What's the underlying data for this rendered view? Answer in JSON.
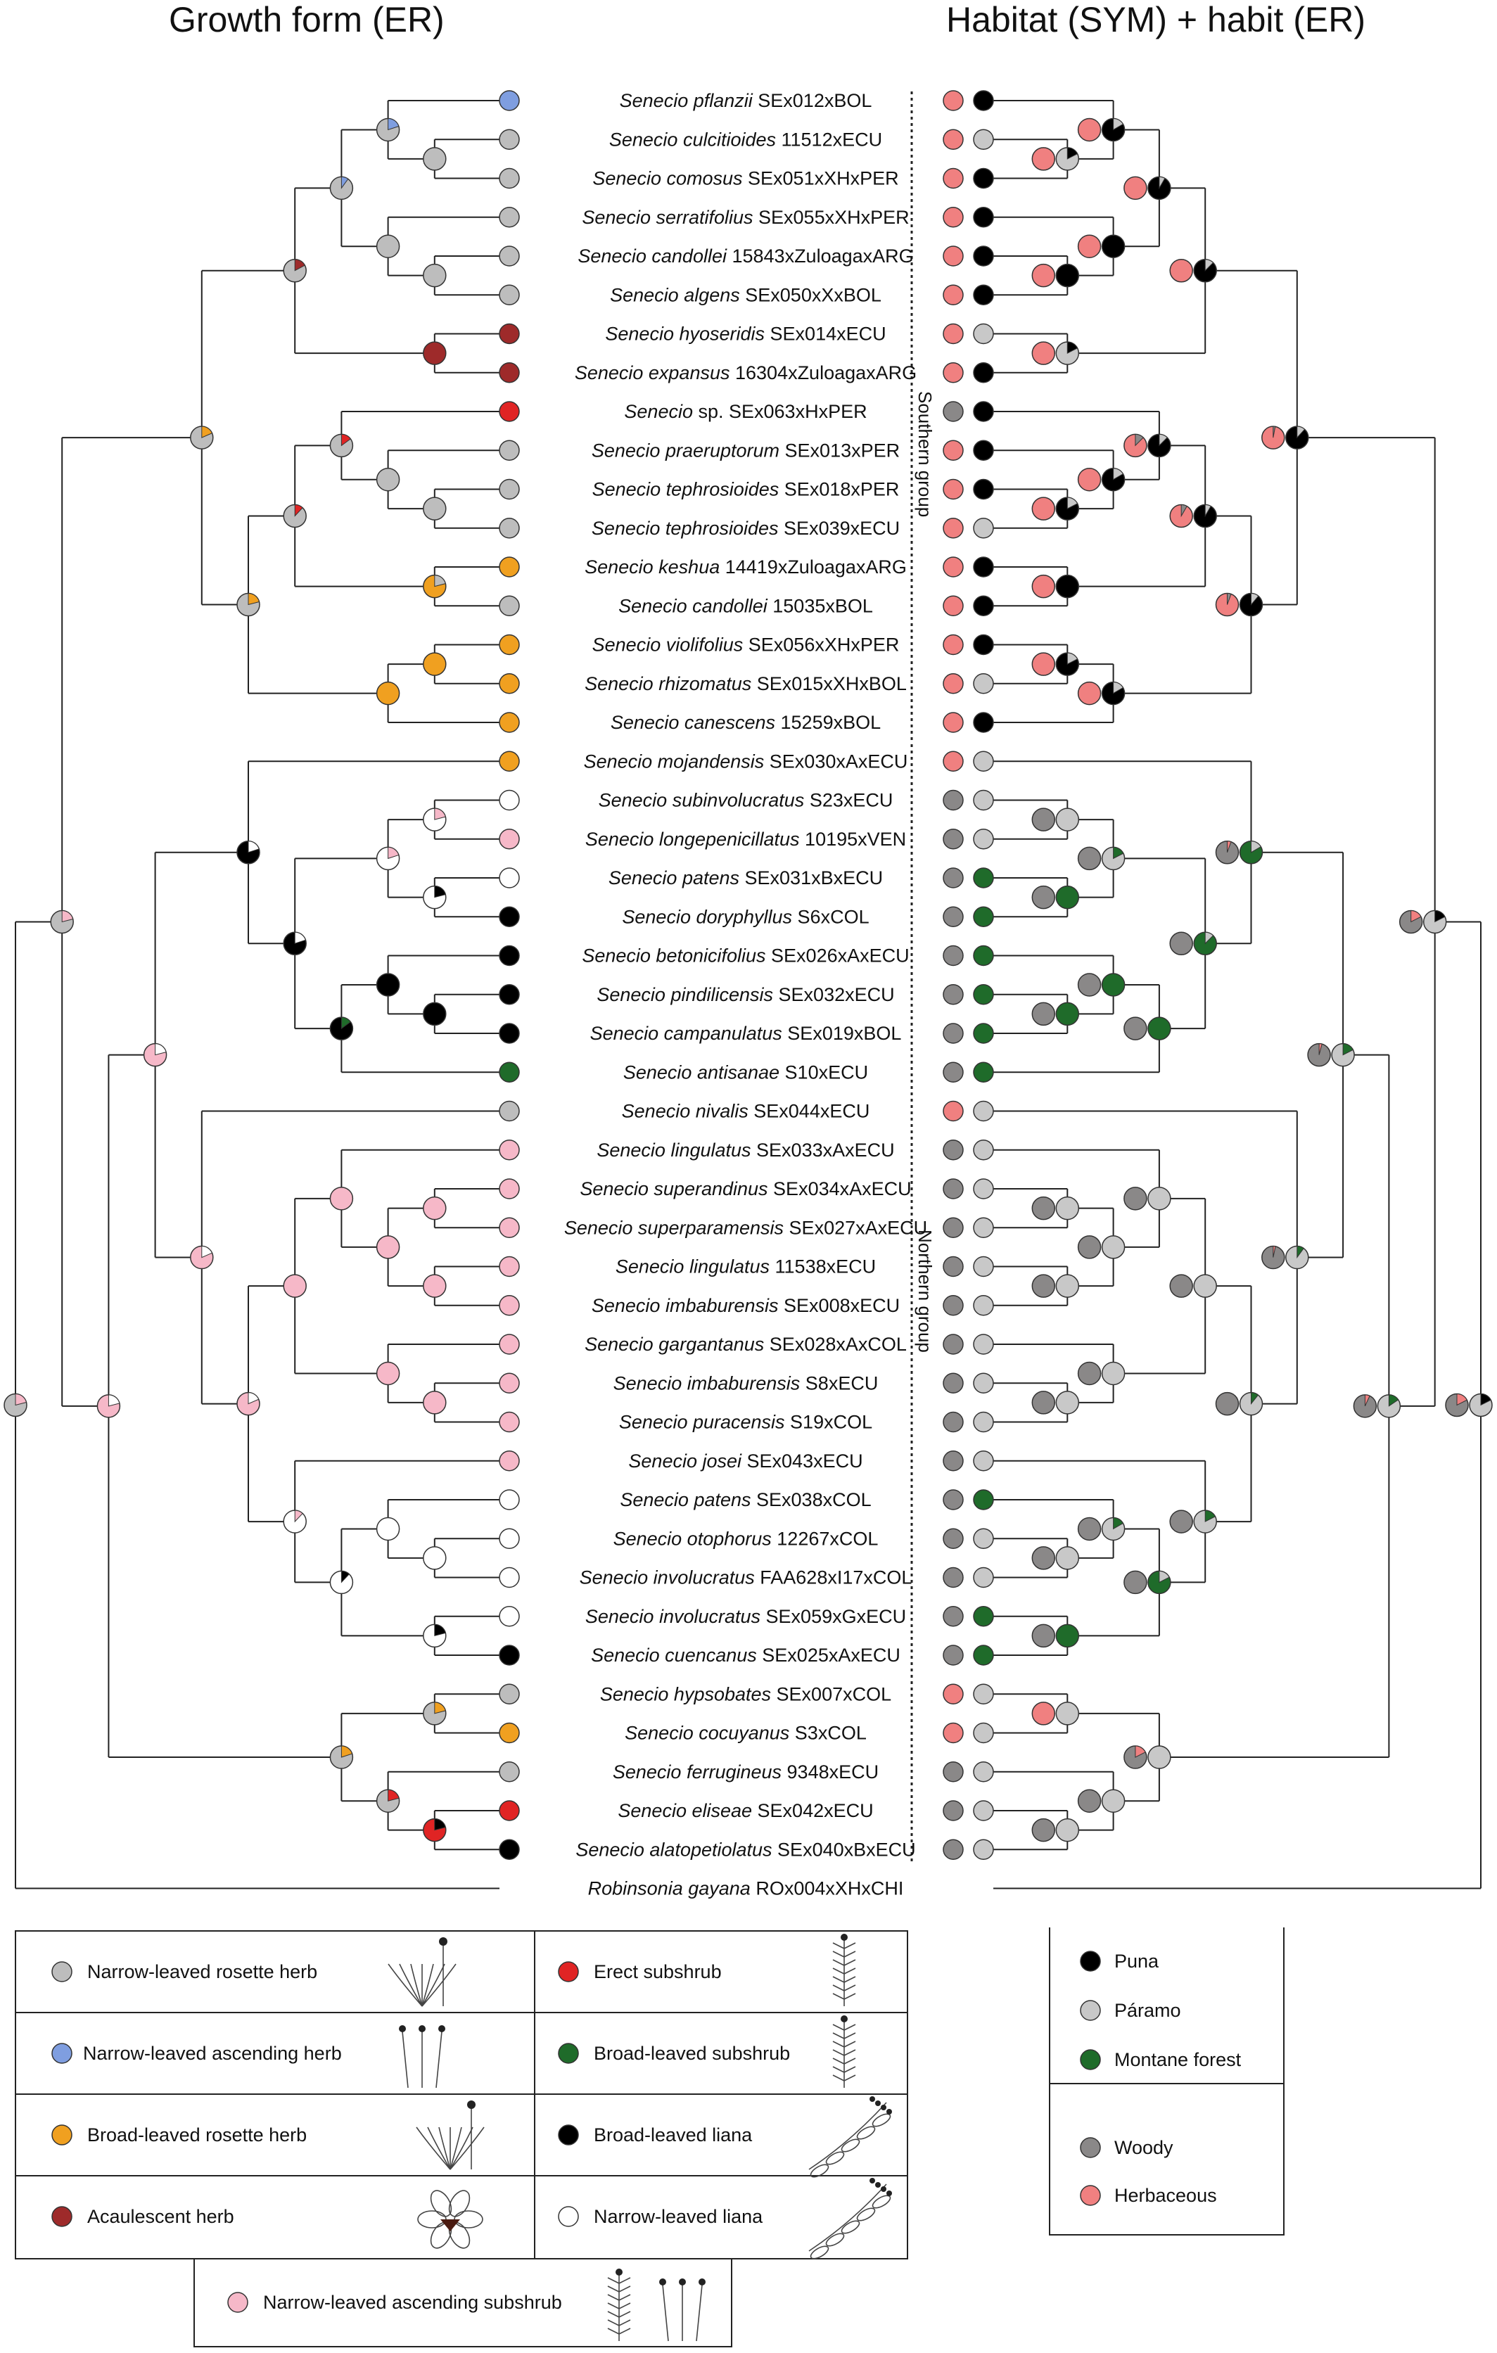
{
  "titles": {
    "left": "Growth form (ER)",
    "right": "Habitat (SYM) + habit (ER)"
  },
  "groups": {
    "southern": "Southern group",
    "northern": "Northern group"
  },
  "colors": {
    "narrow_rosette": "#bdbdbd",
    "narrow_ascending_herb": "#7f9ee0",
    "broad_rosette": "#f0a020",
    "acaulescent": "#9e2a2a",
    "erect_subshrub": "#e02424",
    "broad_subshrub": "#1f6b2a",
    "broad_liana": "#000000",
    "narrow_liana": "#ffffff",
    "narrow_ascending_subshrub": "#f6b8c8",
    "puna": "#000000",
    "paramo": "#c8c8c8",
    "montane": "#1f6b2a",
    "woody": "#8a8888",
    "herbaceous": "#f08080"
  },
  "taxa": [
    {
      "genus": "Senecio",
      "epithet": "pflanzii",
      "code": "SEx012xBOL",
      "growth": "narrow_ascending_herb",
      "habit": "herbaceous",
      "habitat": "puna"
    },
    {
      "genus": "Senecio",
      "epithet": "culcitioides",
      "code": "11512xECU",
      "growth": "narrow_rosette",
      "habit": "herbaceous",
      "habitat": "paramo"
    },
    {
      "genus": "Senecio",
      "epithet": "comosus",
      "code": "SEx051xXHxPER",
      "growth": "narrow_rosette",
      "habit": "herbaceous",
      "habitat": "puna"
    },
    {
      "genus": "Senecio",
      "epithet": "serratifolius",
      "code": "SEx055xXHxPER",
      "growth": "narrow_rosette",
      "habit": "herbaceous",
      "habitat": "puna"
    },
    {
      "genus": "Senecio",
      "epithet": "candollei",
      "code": "15843xZuloagaxARG",
      "growth": "narrow_rosette",
      "habit": "herbaceous",
      "habitat": "puna"
    },
    {
      "genus": "Senecio",
      "epithet": "algens",
      "code": "SEx050xXxBOL",
      "growth": "narrow_rosette",
      "habit": "herbaceous",
      "habitat": "puna"
    },
    {
      "genus": "Senecio",
      "epithet": "hyoseridis",
      "code": "SEx014xECU",
      "growth": "acaulescent",
      "habit": "herbaceous",
      "habitat": "paramo"
    },
    {
      "genus": "Senecio",
      "epithet": "expansus",
      "code": "16304xZuloagaxARG",
      "growth": "acaulescent",
      "habit": "herbaceous",
      "habitat": "puna"
    },
    {
      "genus": "Senecio",
      "epithet": "sp.",
      "code": "SEx063xHxPER",
      "growth": "erect_subshrub",
      "habit": "woody",
      "habitat": "puna",
      "plain_epithet": true
    },
    {
      "genus": "Senecio",
      "epithet": "praeruptorum",
      "code": "SEx013xPER",
      "growth": "narrow_rosette",
      "habit": "herbaceous",
      "habitat": "puna"
    },
    {
      "genus": "Senecio",
      "epithet": "tephrosioides",
      "code": "SEx018xPER",
      "growth": "narrow_rosette",
      "habit": "herbaceous",
      "habitat": "puna"
    },
    {
      "genus": "Senecio",
      "epithet": "tephrosioides",
      "code": "SEx039xECU",
      "growth": "narrow_rosette",
      "habit": "herbaceous",
      "habitat": "paramo"
    },
    {
      "genus": "Senecio",
      "epithet": "keshua",
      "code": "14419xZuloagaxARG",
      "growth": "broad_rosette",
      "habit": "herbaceous",
      "habitat": "puna"
    },
    {
      "genus": "Senecio",
      "epithet": "candollei",
      "code": "15035xBOL",
      "growth": "narrow_rosette",
      "habit": "herbaceous",
      "habitat": "puna"
    },
    {
      "genus": "Senecio",
      "epithet": "violifolius",
      "code": "SEx056xXHxPER",
      "growth": "broad_rosette",
      "habit": "herbaceous",
      "habitat": "puna"
    },
    {
      "genus": "Senecio",
      "epithet": "rhizomatus",
      "code": "SEx015xXHxBOL",
      "growth": "broad_rosette",
      "habit": "herbaceous",
      "habitat": "paramo"
    },
    {
      "genus": "Senecio",
      "epithet": "canescens",
      "code": "15259xBOL",
      "growth": "broad_rosette",
      "habit": "herbaceous",
      "habitat": "puna"
    },
    {
      "genus": "Senecio",
      "epithet": "mojandensis",
      "code": "SEx030xAxECU",
      "growth": "broad_rosette",
      "habit": "herbaceous",
      "habitat": "paramo"
    },
    {
      "genus": "Senecio",
      "epithet": "subinvolucratus",
      "code": "S23xECU",
      "growth": "narrow_liana",
      "habit": "woody",
      "habitat": "paramo"
    },
    {
      "genus": "Senecio",
      "epithet": "longepenicillatus",
      "code": "10195xVEN",
      "growth": "narrow_ascending_subshrub",
      "habit": "woody",
      "habitat": "paramo"
    },
    {
      "genus": "Senecio",
      "epithet": "patens",
      "code": "SEx031xBxECU",
      "growth": "narrow_liana",
      "habit": "woody",
      "habitat": "montane"
    },
    {
      "genus": "Senecio",
      "epithet": "doryphyllus",
      "code": "S6xCOL",
      "growth": "broad_liana",
      "habit": "woody",
      "habitat": "montane"
    },
    {
      "genus": "Senecio",
      "epithet": "betonicifolius",
      "code": "SEx026xAxECU",
      "growth": "broad_liana",
      "habit": "woody",
      "habitat": "montane"
    },
    {
      "genus": "Senecio",
      "epithet": "pindilicensis",
      "code": "SEx032xECU",
      "growth": "broad_liana",
      "habit": "woody",
      "habitat": "montane"
    },
    {
      "genus": "Senecio",
      "epithet": "campanulatus",
      "code": "SEx019xBOL",
      "growth": "broad_liana",
      "habit": "woody",
      "habitat": "montane"
    },
    {
      "genus": "Senecio",
      "epithet": "antisanae",
      "code": "S10xECU",
      "growth": "broad_subshrub",
      "habit": "woody",
      "habitat": "montane"
    },
    {
      "genus": "Senecio",
      "epithet": "nivalis",
      "code": "SEx044xECU",
      "growth": "narrow_rosette",
      "habit": "herbaceous",
      "habitat": "paramo"
    },
    {
      "genus": "Senecio",
      "epithet": "lingulatus",
      "code": "SEx033xAxECU",
      "growth": "narrow_ascending_subshrub",
      "habit": "woody",
      "habitat": "paramo"
    },
    {
      "genus": "Senecio",
      "epithet": "superandinus",
      "code": "SEx034xAxECU",
      "growth": "narrow_ascending_subshrub",
      "habit": "woody",
      "habitat": "paramo"
    },
    {
      "genus": "Senecio",
      "epithet": "superparamensis",
      "code": "SEx027xAxECU",
      "growth": "narrow_ascending_subshrub",
      "habit": "woody",
      "habitat": "paramo"
    },
    {
      "genus": "Senecio",
      "epithet": "lingulatus",
      "code": "11538xECU",
      "growth": "narrow_ascending_subshrub",
      "habit": "woody",
      "habitat": "paramo"
    },
    {
      "genus": "Senecio",
      "epithet": "imbaburensis",
      "code": "SEx008xECU",
      "growth": "narrow_ascending_subshrub",
      "habit": "woody",
      "habitat": "paramo"
    },
    {
      "genus": "Senecio",
      "epithet": "gargantanus",
      "code": "SEx028xAxCOL",
      "growth": "narrow_ascending_subshrub",
      "habit": "woody",
      "habitat": "paramo"
    },
    {
      "genus": "Senecio",
      "epithet": "imbaburensis",
      "code": "S8xECU",
      "growth": "narrow_ascending_subshrub",
      "habit": "woody",
      "habitat": "paramo"
    },
    {
      "genus": "Senecio",
      "epithet": "puracensis",
      "code": "S19xCOL",
      "growth": "narrow_ascending_subshrub",
      "habit": "woody",
      "habitat": "paramo"
    },
    {
      "genus": "Senecio",
      "epithet": "josei",
      "code": "SEx043xECU",
      "growth": "narrow_ascending_subshrub",
      "habit": "woody",
      "habitat": "paramo"
    },
    {
      "genus": "Senecio",
      "epithet": "patens",
      "code": "SEx038xCOL",
      "growth": "narrow_liana",
      "habit": "woody",
      "habitat": "montane"
    },
    {
      "genus": "Senecio",
      "epithet": "otophorus",
      "code": "12267xCOL",
      "growth": "narrow_liana",
      "habit": "woody",
      "habitat": "paramo"
    },
    {
      "genus": "Senecio",
      "epithet": "involucratus",
      "code": "FAA628xI17xCOL",
      "growth": "narrow_liana",
      "habit": "woody",
      "habitat": "paramo"
    },
    {
      "genus": "Senecio",
      "epithet": "involucratus",
      "code": "SEx059xGxECU",
      "growth": "narrow_liana",
      "habit": "woody",
      "habitat": "montane"
    },
    {
      "genus": "Senecio",
      "epithet": "cuencanus",
      "code": "SEx025xAxECU",
      "growth": "broad_liana",
      "habit": "woody",
      "habitat": "montane"
    },
    {
      "genus": "Senecio",
      "epithet": "hypsobates",
      "code": "SEx007xCOL",
      "growth": "narrow_rosette",
      "habit": "herbaceous",
      "habitat": "paramo"
    },
    {
      "genus": "Senecio",
      "epithet": "cocuyanus",
      "code": "S3xCOL",
      "growth": "broad_rosette",
      "habit": "herbaceous",
      "habitat": "paramo"
    },
    {
      "genus": "Senecio",
      "epithet": "ferrugineus",
      "code": "9348xECU",
      "growth": "narrow_rosette",
      "habit": "woody",
      "habitat": "paramo"
    },
    {
      "genus": "Senecio",
      "epithet": "eliseae",
      "code": "SEx042xECU",
      "growth": "erect_subshrub",
      "habit": "woody",
      "habitat": "paramo"
    },
    {
      "genus": "Senecio",
      "epithet": "alatopetiolatus",
      "code": "SEx040xBxECU",
      "growth": "broad_liana",
      "habit": "woody",
      "habitat": "paramo"
    },
    {
      "genus": "Robinsonia",
      "epithet": "gayana",
      "code": "ROx004xXHxCHI",
      "growth": null,
      "habit": null,
      "habitat": null
    }
  ],
  "legend_growth": [
    {
      "label": "Narrow-leaved rosette herb",
      "color": "#bdbdbd"
    },
    {
      "label": "Erect subshrub",
      "color": "#e02424"
    },
    {
      "label": "Narrow-leaved ascending herb",
      "color": "#7f9ee0"
    },
    {
      "label": "Broad-leaved subshrub",
      "color": "#1f6b2a"
    },
    {
      "label": "Broad-leaved rosette herb",
      "color": "#f0a020"
    },
    {
      "label": "Broad-leaved liana",
      "color": "#000000"
    },
    {
      "label": "Acaulescent herb",
      "color": "#9e2a2a"
    },
    {
      "label": "Narrow-leaved liana",
      "color": "#ffffff"
    },
    {
      "label": "Narrow-leaved ascending subshrub",
      "color": "#f6b8c8"
    }
  ],
  "legend_habitat": [
    {
      "label": "Puna",
      "color": "#000000"
    },
    {
      "label": "Páramo",
      "color": "#c8c8c8"
    },
    {
      "label": "Montane forest",
      "color": "#1f6b2a"
    }
  ],
  "legend_habit": [
    {
      "label": "Woody",
      "color": "#8a8888"
    },
    {
      "label": "Herbaceous",
      "color": "#f08080"
    }
  ]
}
